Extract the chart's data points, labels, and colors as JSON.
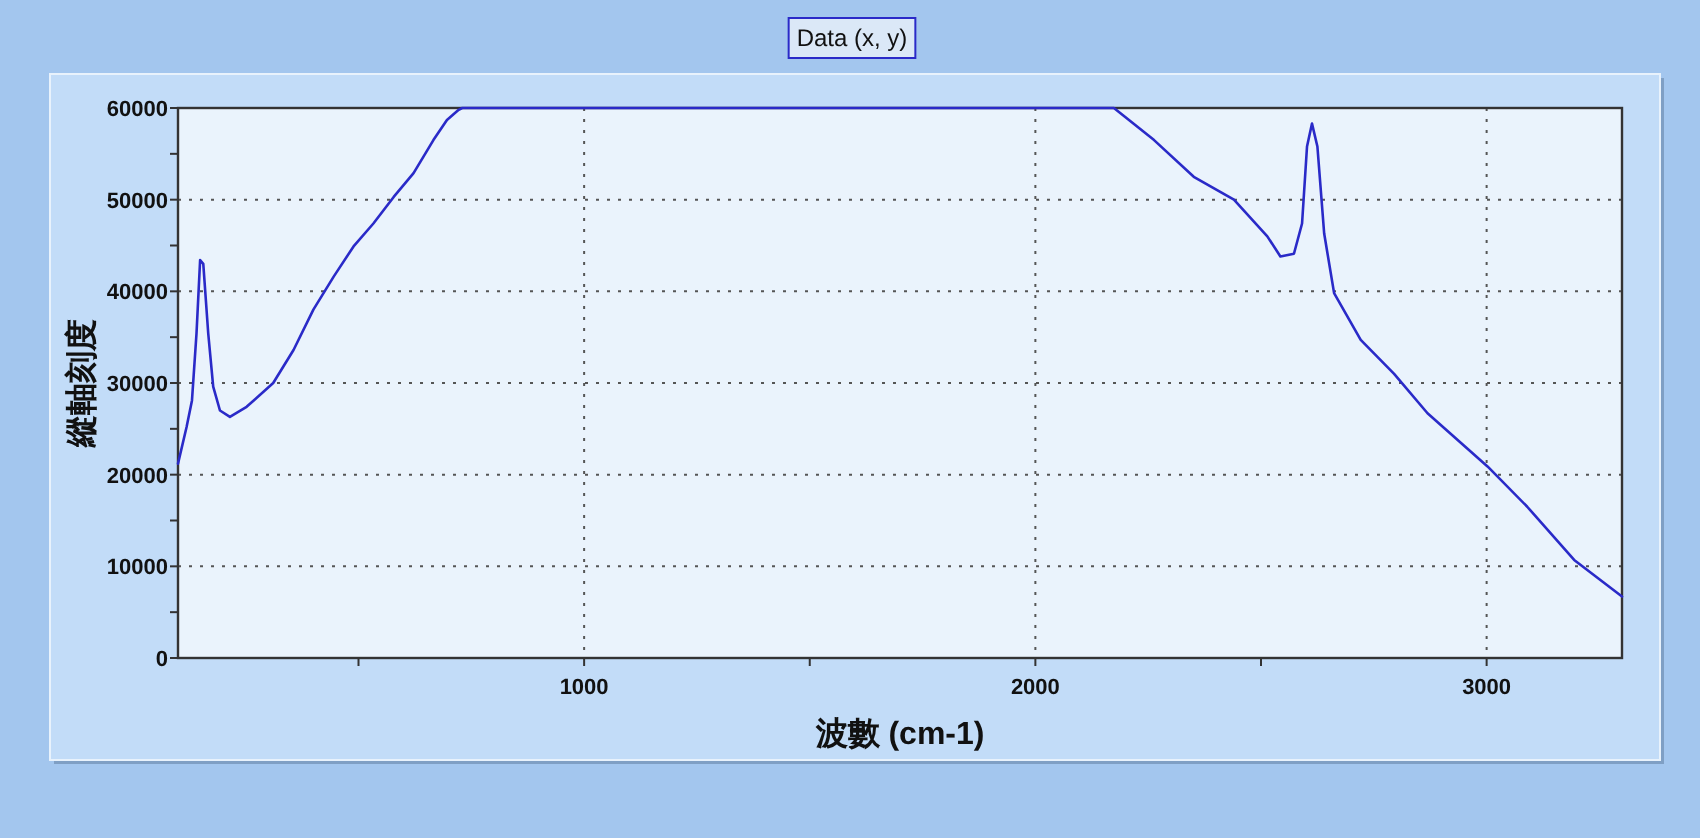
{
  "chart_data": {
    "type": "line",
    "xlabel": "波數 (cm-1)",
    "ylabel": "縱軸刻度",
    "x": [
      100,
      119,
      131,
      141,
      149,
      156,
      167,
      178,
      193,
      215,
      252,
      311,
      356,
      400,
      445,
      489,
      533,
      578,
      622,
      666,
      696,
      722,
      730,
      2174,
      2263,
      2351,
      2440,
      2514,
      2543,
      2573,
      2591,
      2602,
      2613,
      2625,
      2640,
      2662,
      2721,
      2795,
      2869,
      3002,
      3090,
      3194,
      3300
    ],
    "series": [
      {
        "name": "Data (x, y)",
        "color": "#2a2ac8",
        "values": [
          21200,
          25200,
          28100,
          35400,
          43400,
          43000,
          35400,
          29600,
          27000,
          26300,
          27400,
          30000,
          33600,
          38000,
          41600,
          44900,
          47400,
          50300,
          52900,
          56500,
          58700,
          59800,
          60000,
          60000,
          56500,
          52500,
          50000,
          46000,
          43800,
          44100,
          47400,
          55800,
          58300,
          55800,
          46300,
          39800,
          34700,
          31000,
          26700,
          20900,
          16500,
          10700,
          6700
        ]
      }
    ],
    "xlim": [
      100,
      3300
    ],
    "ylim": [
      0,
      60000
    ],
    "xticks": [
      {
        "value": 500,
        "label": null
      },
      1000,
      {
        "value": 1500,
        "label": null
      },
      2000,
      {
        "value": 2500,
        "label": null
      },
      3000
    ],
    "yticks": [
      0,
      {
        "value": 5000,
        "label": null
      },
      10000,
      {
        "value": 15000,
        "label": null
      },
      20000,
      {
        "value": 25000,
        "label": null
      },
      30000,
      {
        "value": 35000,
        "label": null
      },
      40000,
      {
        "value": 45000,
        "label": null
      },
      50000,
      {
        "value": 55000,
        "label": null
      },
      60000
    ],
    "grid": true,
    "legend": "top",
    "line_style": "solid",
    "marker": "none"
  }
}
